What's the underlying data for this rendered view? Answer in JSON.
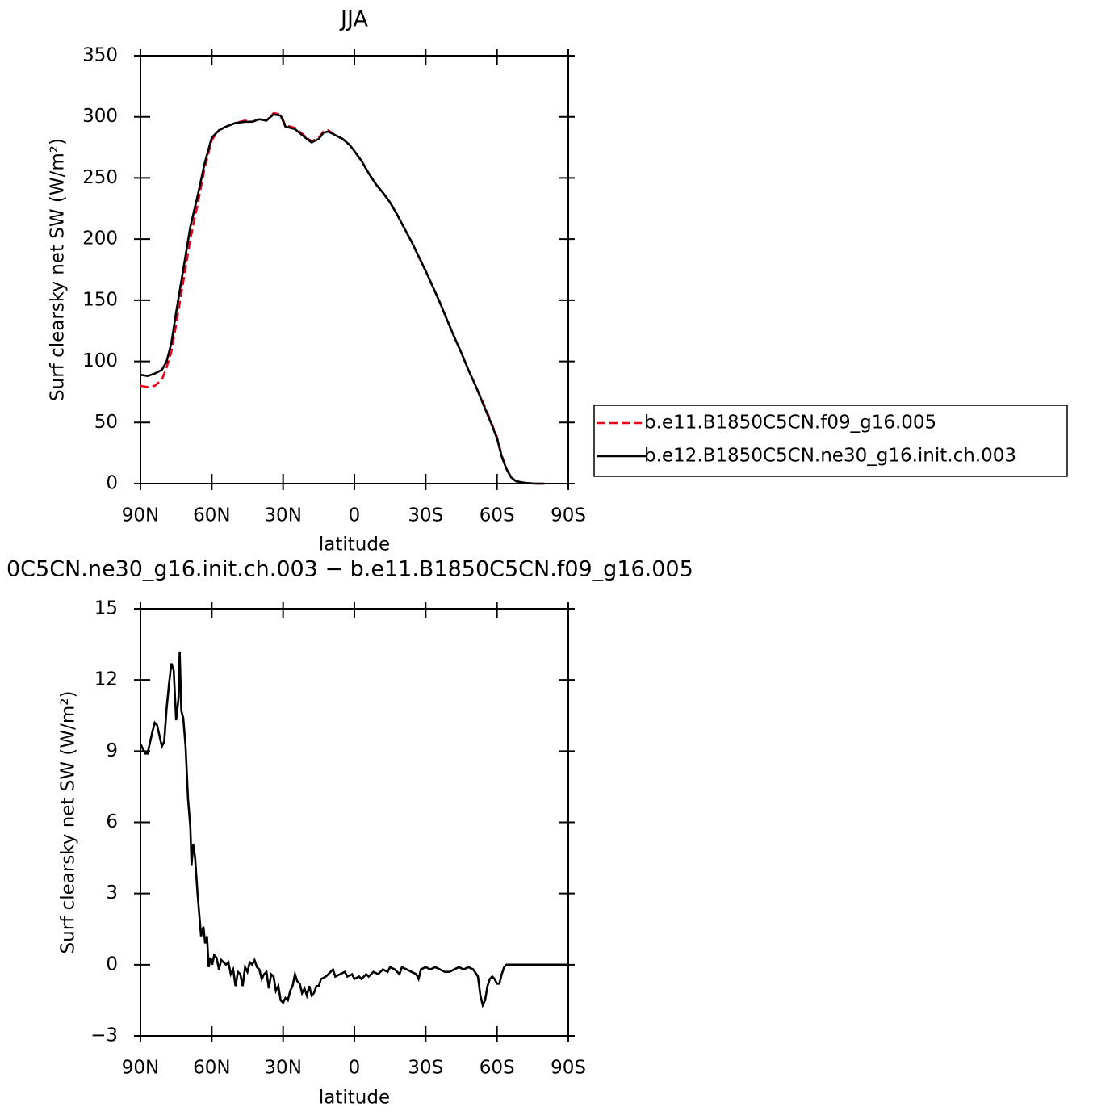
{
  "chart_data": [
    {
      "type": "line",
      "title": "JJA",
      "y_label": "Surf clearsky net SW (W/m²)",
      "x_label": "latitude",
      "x": [
        90,
        87,
        84,
        81,
        79,
        77,
        75,
        72,
        69,
        66,
        63,
        60,
        57,
        54,
        50,
        46,
        43,
        40,
        37,
        34,
        31,
        29,
        25,
        20,
        18,
        15,
        13,
        11,
        8,
        5,
        2,
        0,
        -3,
        -6,
        -9,
        -12,
        -15,
        -18,
        -21,
        -24,
        -27,
        -30,
        -33,
        -36,
        -39,
        -42,
        -45,
        -48,
        -51,
        -54,
        -57,
        -60,
        -62,
        -64,
        -66,
        -68,
        -72,
        -76,
        -80
      ],
      "series": [
        {
          "name": "b.e11.B1850C5CN.f09_g16.005",
          "color": "#e8001a",
          "linestyle": "dashed",
          "values": [
            80,
            79,
            80,
            85,
            95,
            108,
            130,
            165,
            200,
            228,
            258,
            281,
            289,
            292,
            295,
            297,
            296,
            298,
            297,
            303,
            302,
            293,
            291,
            283,
            280,
            283,
            288,
            289,
            285,
            282,
            277,
            272,
            264,
            254,
            245,
            238,
            230,
            220,
            209,
            198,
            186,
            174,
            161,
            148,
            134,
            120,
            107,
            93,
            80,
            67,
            53,
            38,
            23,
            12,
            5,
            2,
            0.5,
            0,
            0
          ]
        },
        {
          "name": "b.e12.B1850C5CN.ne30_g16.init.ch.003",
          "color": "#000000",
          "linestyle": "solid",
          "values": [
            89,
            88,
            90,
            93,
            100,
            115,
            140,
            175,
            210,
            235,
            262,
            283,
            289,
            292,
            295,
            296,
            296,
            298,
            297,
            302,
            301,
            292,
            290,
            282,
            279,
            282,
            287,
            288,
            285,
            282,
            277,
            272,
            264,
            254,
            245,
            238,
            230,
            220,
            209,
            198,
            186,
            174,
            161,
            148,
            134,
            120,
            107,
            93,
            80,
            66,
            52,
            37,
            22,
            12,
            5,
            2,
            0.5,
            0,
            0
          ]
        }
      ],
      "xlim": [
        90,
        -90
      ],
      "xticks": [
        {
          "value": 90,
          "label": "90N"
        },
        {
          "value": 60,
          "label": "60N"
        },
        {
          "value": 30,
          "label": "30N"
        },
        0,
        {
          "value": -30,
          "label": "30S"
        },
        {
          "value": -60,
          "label": "60S"
        },
        {
          "value": -90,
          "label": "90S"
        }
      ],
      "ylim": [
        0,
        350
      ],
      "yticks": [
        0,
        50,
        100,
        150,
        200,
        250,
        300,
        350
      ]
    },
    {
      "type": "line",
      "title": "0C5CN.ne30_g16.init.ch.003 − b.e11.B1850C5CN.f09_g16.005",
      "y_label": "Surf clearsky net SW (W/m²)",
      "x_label": "latitude",
      "x": [
        90,
        88,
        87,
        85,
        84,
        83,
        81,
        80,
        79,
        78,
        77,
        76,
        75,
        74,
        73.5,
        72.8,
        72,
        71,
        70,
        69,
        68.5,
        67.8,
        67,
        66,
        64.5,
        63.5,
        62.8,
        62,
        61.3,
        60.5,
        59.8,
        59,
        58,
        57,
        56,
        54,
        53,
        52,
        51,
        50,
        49,
        48,
        47,
        46,
        45,
        44,
        43,
        42,
        41,
        40,
        39,
        38,
        37,
        36,
        35,
        34,
        33,
        32,
        31,
        30,
        29,
        28,
        27,
        26,
        25,
        24,
        23,
        22,
        21,
        20,
        19,
        18,
        17,
        16,
        15,
        14,
        12,
        10,
        9,
        8,
        6,
        4,
        3,
        1,
        0,
        -2,
        -3,
        -5,
        -6,
        -8,
        -10,
        -12,
        -14,
        -15,
        -17,
        -19,
        -20,
        -22,
        -24,
        -26,
        -27,
        -28,
        -30,
        -32,
        -34,
        -36,
        -38,
        -40,
        -42,
        -44,
        -46,
        -48,
        -50,
        -52,
        -53,
        -54,
        -55,
        -56,
        -57,
        -58,
        -59,
        -60,
        -61,
        -62,
        -63,
        -64,
        -66,
        -70,
        -80,
        -90
      ],
      "values": [
        9.3,
        8.9,
        8.9,
        9.8,
        10.2,
        10.1,
        9.2,
        9.4,
        10.8,
        11.8,
        12.7,
        12.4,
        10.3,
        11.2,
        13.2,
        10.7,
        10.4,
        9.2,
        7.0,
        5.8,
        4.2,
        5.1,
        4.5,
        3.0,
        1.2,
        1.6,
        0.9,
        1.2,
        -0.1,
        0.3,
        0,
        0.4,
        0.3,
        -0.2,
        0.2,
        0,
        0.1,
        -0.4,
        -0.2,
        -0.9,
        -0.3,
        -0.4,
        -0.9,
        -0.1,
        -0.3,
        0.1,
        0,
        0.2,
        -0.1,
        -0.2,
        -0.6,
        -0.4,
        -0.3,
        -1.0,
        -0.4,
        -0.5,
        -1.1,
        -0.9,
        -1.5,
        -1.6,
        -1.4,
        -1.5,
        -1.1,
        -0.9,
        -0.4,
        -0.7,
        -0.8,
        -1.2,
        -1.0,
        -1.3,
        -0.9,
        -1.3,
        -1.2,
        -0.9,
        -0.9,
        -0.6,
        -0.5,
        -0.3,
        -0.2,
        -0.5,
        -0.4,
        -0.3,
        -0.5,
        -0.4,
        -0.6,
        -0.5,
        -0.6,
        -0.4,
        -0.5,
        -0.3,
        -0.4,
        -0.2,
        -0.3,
        -0.1,
        -0.2,
        -0.4,
        -0.1,
        -0.2,
        -0.3,
        -0.4,
        -0.6,
        -0.2,
        -0.1,
        -0.2,
        -0.1,
        -0.2,
        -0.3,
        -0.3,
        -0.2,
        -0.1,
        -0.2,
        -0.1,
        -0.2,
        -0.5,
        -1.3,
        -1.7,
        -1.5,
        -0.9,
        -0.6,
        -0.5,
        -0.6,
        -0.8,
        -0.8,
        -0.4,
        -0.1,
        0,
        0,
        0,
        0,
        0
      ],
      "color": "#000000",
      "xlim": [
        90,
        -90
      ],
      "xticks": [
        {
          "value": 90,
          "label": "90N"
        },
        {
          "value": 60,
          "label": "60N"
        },
        {
          "value": 30,
          "label": "30N"
        },
        0,
        {
          "value": -30,
          "label": "30S"
        },
        {
          "value": -60,
          "label": "60S"
        },
        {
          "value": -90,
          "label": "90S"
        }
      ],
      "ylim": [
        -3,
        15
      ],
      "yticks": [
        {
          "value": -3,
          "label": "−3"
        },
        0,
        3,
        6,
        9,
        12,
        15
      ]
    }
  ]
}
